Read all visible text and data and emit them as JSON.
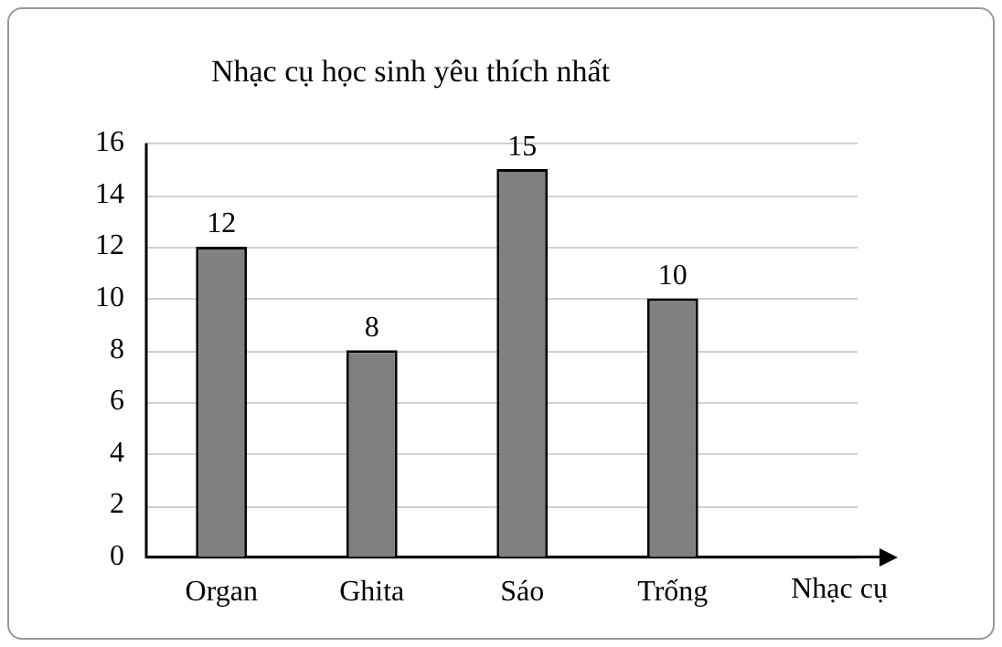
{
  "chart_data": {
    "type": "bar",
    "title": "Nhạc cụ học sinh yêu thích nhất",
    "xlabel": "Nhạc cụ",
    "categories": [
      "Organ",
      "Ghita",
      "Sáo",
      "Trống"
    ],
    "values": [
      12,
      8,
      15,
      10
    ],
    "color": "#808080",
    "ylim": [
      0,
      16
    ],
    "yticks": [
      0,
      2,
      4,
      6,
      8,
      10,
      12,
      14,
      16
    ],
    "grid": "y",
    "data_labels": true
  }
}
